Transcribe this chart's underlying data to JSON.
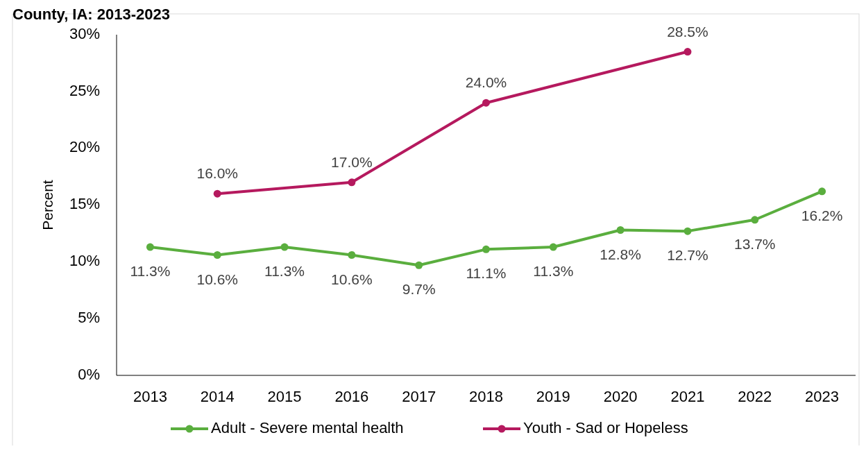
{
  "chart_data": {
    "type": "line",
    "title": "County, IA: 2013-2023",
    "ylabel": "Percent",
    "categories": [
      "2013",
      "2014",
      "2015",
      "2016",
      "2017",
      "2018",
      "2019",
      "2020",
      "2021",
      "2022",
      "2023"
    ],
    "series": [
      {
        "name": "Adult - Severe mental health",
        "color": "#5aae3e",
        "values": [
          11.3,
          10.6,
          11.3,
          10.6,
          9.7,
          11.1,
          11.3,
          12.8,
          12.7,
          13.7,
          16.2
        ],
        "value_labels": [
          "11.3%",
          "10.6%",
          "11.3%",
          "10.6%",
          "9.7%",
          "11.1%",
          "11.3%",
          "12.8%",
          "12.7%",
          "13.7%",
          "16.2%"
        ]
      },
      {
        "name": "Youth - Sad or Hopeless",
        "color": "#b5195e",
        "values": [
          null,
          16.0,
          null,
          17.0,
          null,
          24.0,
          null,
          null,
          28.5,
          null,
          null
        ],
        "value_labels": [
          null,
          "16.0%",
          null,
          "17.0%",
          null,
          "24.0%",
          null,
          null,
          "28.5%",
          null,
          null
        ]
      }
    ],
    "ylim": [
      0,
      30
    ],
    "yticks": [
      {
        "value": 0,
        "label": "0%"
      },
      {
        "value": 5,
        "label": "5%"
      },
      {
        "value": 10,
        "label": "10%"
      },
      {
        "value": 15,
        "label": "15%"
      },
      {
        "value": 20,
        "label": "20%"
      },
      {
        "value": 25,
        "label": "25%"
      },
      {
        "value": 30,
        "label": "30%"
      }
    ],
    "grid": false,
    "legend": "bottom",
    "marker": "circle",
    "line_style": "solid"
  }
}
